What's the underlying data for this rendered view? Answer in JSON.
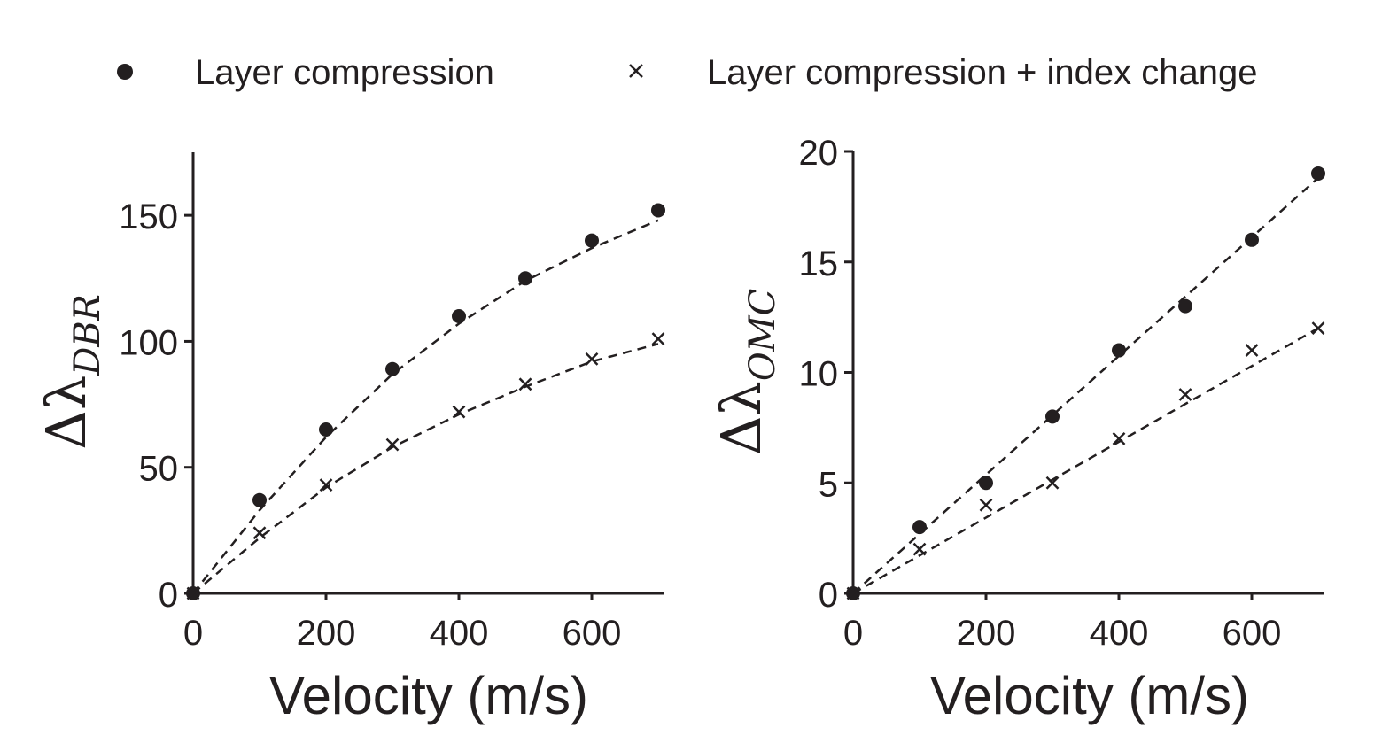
{
  "legend": {
    "items": [
      {
        "label": "Layer compression",
        "marker": "filled-circle"
      },
      {
        "label": "Layer compression + index change",
        "marker": "x-cross"
      }
    ],
    "placement": "top-center"
  },
  "colors": {
    "ink": "#231f20",
    "background": "#ffffff"
  },
  "chart_data": [
    {
      "type": "scatter",
      "panel": "left",
      "xlabel": "Velocity (m/s)",
      "ylabel": {
        "main": "Δλ",
        "subscript": "DBR"
      },
      "xlim": [
        0,
        710
      ],
      "ylim": [
        0,
        175
      ],
      "xticks": [
        0,
        200,
        400,
        600
      ],
      "xtick_labels": [
        "0",
        "200",
        "400",
        "600"
      ],
      "yticks": [
        0,
        50,
        100,
        150
      ],
      "ytick_labels": [
        "0",
        "50",
        "100",
        "150"
      ],
      "grid": false,
      "series": [
        {
          "name": "Layer compression",
          "marker": "filled-circle",
          "x": [
            0,
            100,
            200,
            300,
            400,
            500,
            600,
            700
          ],
          "y": [
            0,
            37,
            65,
            89,
            110,
            125,
            140,
            152
          ],
          "fit_line": {
            "x": [
              0,
              100,
              200,
              300,
              400,
              500,
              600,
              700
            ],
            "y": [
              0,
              33,
              62,
              87,
              107,
              124,
              137,
              148
            ]
          }
        },
        {
          "name": "Layer compression + index change",
          "marker": "x-cross",
          "x": [
            0,
            100,
            200,
            300,
            400,
            500,
            600,
            700
          ],
          "y": [
            0,
            24,
            43,
            59,
            72,
            83,
            93,
            101
          ],
          "fit_line": {
            "x": [
              0,
              100,
              200,
              300,
              400,
              500,
              600,
              700
            ],
            "y": [
              0,
              22,
              42,
              58,
              71,
              82,
              92,
              99
            ]
          }
        }
      ]
    },
    {
      "type": "scatter",
      "panel": "right",
      "xlabel": "Velocity (m/s)",
      "ylabel": {
        "main": "Δλ",
        "subscript": "OMC"
      },
      "xlim": [
        0,
        710
      ],
      "ylim": [
        0,
        20
      ],
      "xticks": [
        0,
        200,
        400,
        600
      ],
      "xtick_labels": [
        "0",
        "200",
        "400",
        "600"
      ],
      "yticks": [
        0,
        5,
        10,
        15,
        20
      ],
      "ytick_labels": [
        "0",
        "5",
        "10",
        "15",
        "20"
      ],
      "grid": false,
      "series": [
        {
          "name": "Layer compression",
          "marker": "filled-circle",
          "x": [
            0,
            100,
            200,
            300,
            400,
            500,
            600,
            700
          ],
          "y": [
            0,
            3,
            5,
            8,
            11,
            13,
            16,
            19
          ],
          "fit_line": {
            "x": [
              0,
              700
            ],
            "y": [
              0,
              18.8
            ]
          }
        },
        {
          "name": "Layer compression + index change",
          "marker": "x-cross",
          "x": [
            0,
            100,
            200,
            300,
            400,
            500,
            600,
            700
          ],
          "y": [
            0,
            2,
            4,
            5,
            7,
            9,
            11,
            12
          ],
          "fit_line": {
            "x": [
              0,
              700
            ],
            "y": [
              0,
              12
            ]
          }
        }
      ]
    }
  ]
}
